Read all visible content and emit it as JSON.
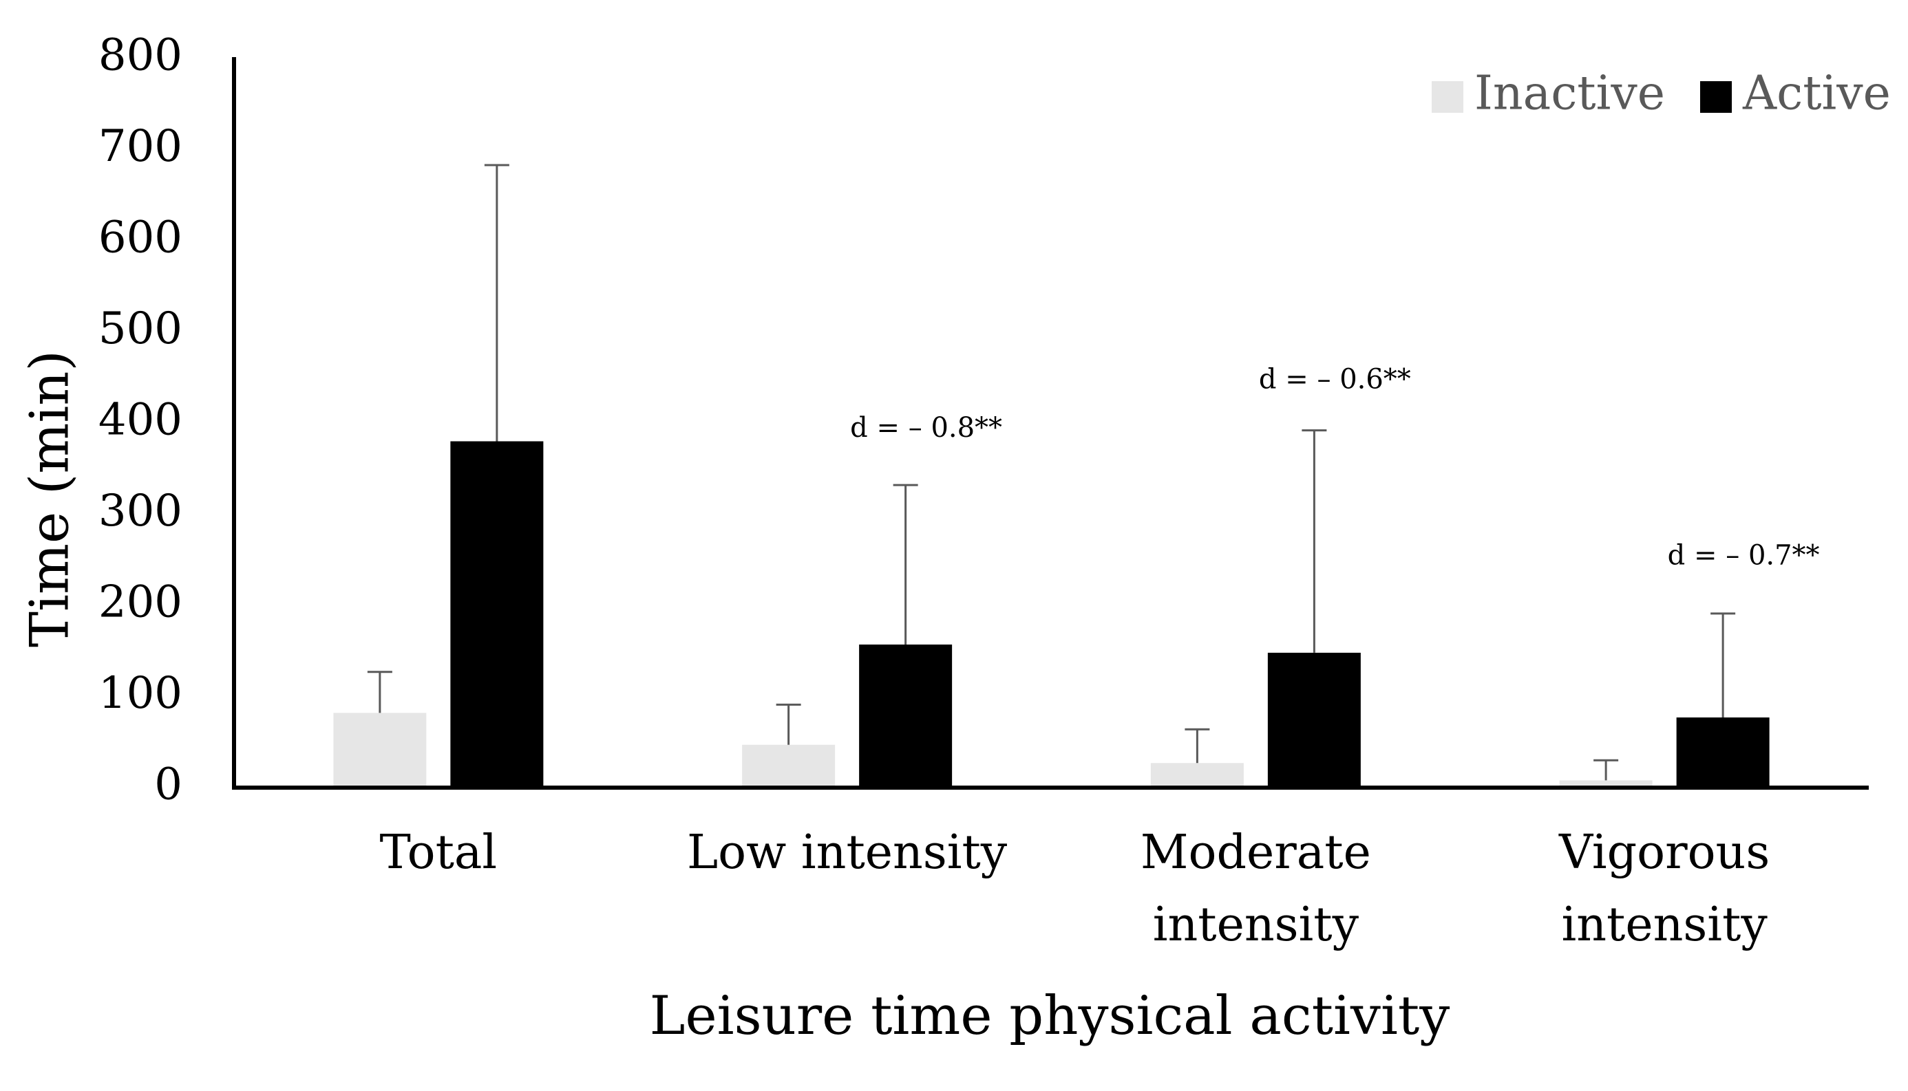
{
  "chart_data": {
    "type": "bar",
    "title": "",
    "xlabel": "Leisure time physical activity",
    "ylabel": "Time (min)",
    "ylim": [
      0,
      800
    ],
    "yticks": [
      0,
      100,
      200,
      300,
      400,
      500,
      600,
      700,
      800
    ],
    "categories": [
      [
        "Total"
      ],
      [
        "Low intensity"
      ],
      [
        "Moderate",
        "intensity"
      ],
      [
        "Vigorous",
        "intensity"
      ]
    ],
    "series": [
      {
        "name": "Inactive",
        "color": "#e6e6e6",
        "values": [
          82,
          47,
          27,
          8
        ],
        "error_upper": [
          127,
          91,
          64,
          30
        ]
      },
      {
        "name": "Active",
        "color": "#000000",
        "values": [
          380,
          157,
          148,
          77
        ],
        "error_upper": [
          683,
          332,
          392,
          191
        ]
      }
    ],
    "annotations": [
      {
        "category_index": 1,
        "text": "d = – 0.8**",
        "value": 385
      },
      {
        "category_index": 2,
        "text": "d = – 0.6**",
        "value": 438
      },
      {
        "category_index": 3,
        "text": "d = – 0.7**",
        "value": 245
      }
    ],
    "legend_position": "top-right",
    "grid": false
  }
}
